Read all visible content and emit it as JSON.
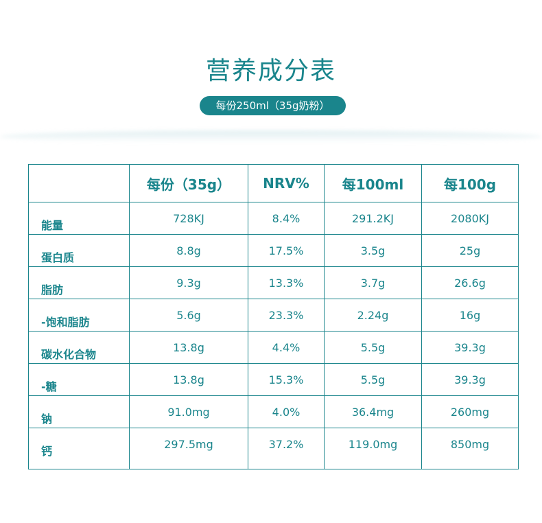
{
  "header": {
    "title": "营养成分表",
    "serving_note": "每份250ml（35g奶粉）"
  },
  "table": {
    "columns": [
      "",
      "每份（35g）",
      "NRV%",
      "每100ml",
      "每100g"
    ],
    "rows": [
      {
        "nutrient": "能量",
        "per_serving": "728KJ",
        "nrv": "8.4%",
        "per_100ml": "291.2KJ",
        "per_100g": "2080KJ"
      },
      {
        "nutrient": "蛋白质",
        "per_serving": "8.8g",
        "nrv": "17.5%",
        "per_100ml": "3.5g",
        "per_100g": "25g"
      },
      {
        "nutrient": "脂肪",
        "per_serving": "9.3g",
        "nrv": "13.3%",
        "per_100ml": "3.7g",
        "per_100g": "26.6g"
      },
      {
        "nutrient": "-饱和脂肪",
        "per_serving": "5.6g",
        "nrv": "23.3%",
        "per_100ml": "2.24g",
        "per_100g": "16g"
      },
      {
        "nutrient": "碳水化合物",
        "per_serving": "13.8g",
        "nrv": "4.4%",
        "per_100ml": "5.5g",
        "per_100g": "39.3g"
      },
      {
        "nutrient": "-糖",
        "per_serving": "13.8g",
        "nrv": "15.3%",
        "per_100ml": "5.5g",
        "per_100g": "39.3g"
      },
      {
        "nutrient": "钠",
        "per_serving": "91.0mg",
        "nrv": "4.0%",
        "per_100ml": "36.4mg",
        "per_100g": "260mg"
      },
      {
        "nutrient": "钙",
        "per_serving": "297.5mg",
        "nrv": "37.2%",
        "per_100ml": "119.0mg",
        "per_100g": "850mg"
      }
    ]
  },
  "colors": {
    "accent": "#1a858c",
    "background": "#ffffff"
  }
}
